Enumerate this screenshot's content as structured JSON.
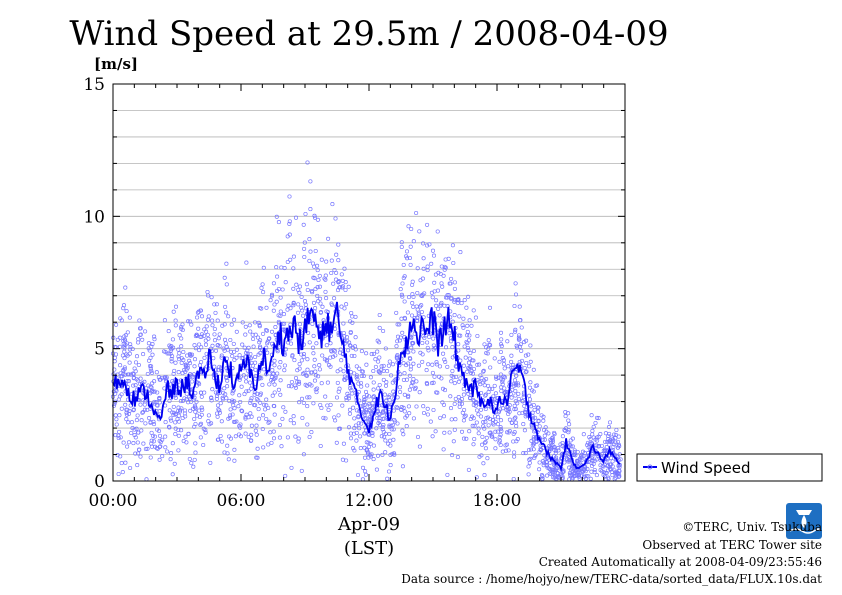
{
  "chart_data": {
    "type": "scatter",
    "title": "Wind Speed at 29.5m / 2008-04-09",
    "y_unit": "[m/s]",
    "xlabel_line1": "Apr-09",
    "xlabel_line2": "(LST)",
    "xlim_hours": [
      0,
      24
    ],
    "ylim": [
      0,
      15
    ],
    "x_ticks": [
      {
        "hour": 0,
        "label": "00:00"
      },
      {
        "hour": 6,
        "label": "06:00"
      },
      {
        "hour": 12,
        "label": "12:00"
      },
      {
        "hour": 18,
        "label": "18:00"
      }
    ],
    "y_ticks": [
      {
        "value": 0,
        "label": "0"
      },
      {
        "value": 5,
        "label": "5"
      },
      {
        "value": 10,
        "label": "10"
      },
      {
        "value": 15,
        "label": "15"
      }
    ],
    "grid": true,
    "legend_position": "right",
    "series": [
      {
        "name": "Wind Speed",
        "color": "#0000ee",
        "scatter_color": "#7777ff",
        "mean_hour": [
          0.0,
          0.25,
          0.5,
          0.75,
          1.0,
          1.25,
          1.5,
          1.75,
          2.0,
          2.25,
          2.5,
          2.75,
          3.0,
          3.25,
          3.5,
          3.75,
          4.0,
          4.25,
          4.5,
          4.75,
          5.0,
          5.25,
          5.5,
          5.75,
          6.0,
          6.25,
          6.5,
          6.75,
          7.0,
          7.25,
          7.5,
          7.75,
          8.0,
          8.25,
          8.5,
          8.75,
          9.0,
          9.25,
          9.5,
          9.75,
          10.0,
          10.25,
          10.5,
          10.75,
          11.0,
          11.25,
          11.5,
          11.75,
          12.0,
          12.25,
          12.5,
          12.75,
          13.0,
          13.25,
          13.5,
          13.75,
          14.0,
          14.25,
          14.5,
          14.75,
          15.0,
          15.25,
          15.5,
          15.75,
          16.0,
          16.25,
          16.5,
          16.75,
          17.0,
          17.25,
          17.5,
          17.75,
          18.0,
          18.25,
          18.5,
          18.75,
          19.0,
          19.25,
          19.5,
          19.75,
          20.0,
          20.25,
          20.5,
          20.75,
          21.0,
          21.25,
          21.5,
          21.75,
          22.0,
          22.25,
          22.5,
          22.75,
          23.0,
          23.25,
          23.5,
          23.75,
          24.0
        ],
        "mean_speed": [
          4.0,
          3.6,
          3.9,
          3.4,
          3.1,
          3.3,
          3.4,
          3.0,
          2.5,
          2.2,
          3.5,
          3.3,
          3.6,
          3.5,
          3.8,
          3.3,
          4.0,
          3.8,
          4.8,
          3.9,
          3.7,
          4.6,
          4.2,
          3.5,
          4.2,
          4.5,
          3.9,
          3.7,
          4.8,
          4.2,
          4.5,
          5.8,
          5.2,
          5.6,
          5.9,
          5.2,
          5.6,
          6.5,
          6.0,
          5.1,
          6.2,
          5.6,
          6.3,
          5.1,
          4.4,
          3.5,
          2.9,
          2.3,
          2.0,
          2.6,
          3.3,
          2.8,
          2.4,
          3.6,
          5.2,
          5.0,
          6.3,
          5.4,
          5.9,
          5.6,
          6.1,
          5.2,
          5.7,
          6.0,
          5.4,
          4.2,
          3.9,
          3.4,
          3.5,
          2.9,
          3.2,
          2.8,
          2.7,
          3.2,
          2.9,
          4.1,
          4.3,
          3.6,
          2.7,
          2.1,
          1.6,
          1.2,
          0.9,
          0.7,
          0.5,
          1.5,
          0.8,
          0.5,
          0.6,
          0.8,
          1.3,
          1.0,
          0.7,
          1.2,
          0.9,
          0.6,
          0.6
        ]
      }
    ]
  },
  "credits": {
    "copyright": "©TERC, Univ. Tsukuba",
    "observed": "Observed at TERC Tower site",
    "created": "Created Automatically at 2008-04-09/23:55:46",
    "source": "Data source : /home/hojyo/new/TERC-data/sorted_data/FLUX.10s.dat"
  },
  "logo": {
    "text": "TERC",
    "icon": "terc-logo-icon",
    "color": "#1e6fc2"
  }
}
